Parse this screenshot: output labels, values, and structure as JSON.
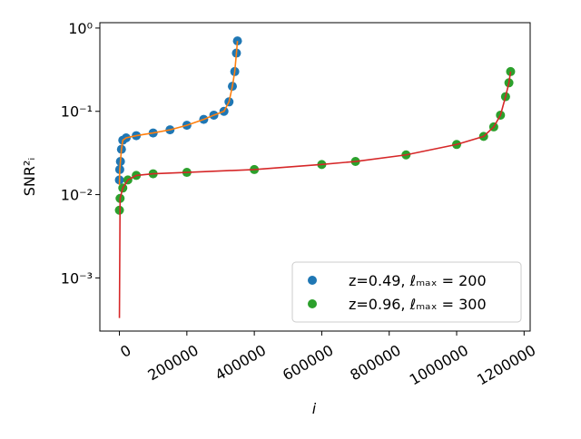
{
  "chart_data": {
    "type": "scatter",
    "xlabel": "i",
    "ylabel": "SNR²ᵢ",
    "xlim": [
      -58000,
      1218000
    ],
    "ylim": [
      0.00023,
      1.16
    ],
    "yscale": "log",
    "xticks": [
      0,
      200000,
      400000,
      600000,
      800000,
      1000000,
      1200000
    ],
    "yticks": [
      {
        "value": 0.001,
        "label": "10⁻³"
      },
      {
        "value": 0.01,
        "label": "10⁻²"
      },
      {
        "value": 0.1,
        "label": "10⁻¹"
      },
      {
        "value": 1,
        "label": "10⁰"
      }
    ],
    "legend": "lower right",
    "series": [
      {
        "name": "z=0.49, ℓₘₐₓ = 200",
        "type": "scatter",
        "color": "#1f77b4",
        "x": [
          0,
          1000,
          3000,
          6000,
          10000,
          20000,
          50000,
          100000,
          150000,
          200000,
          250000,
          280000,
          310000,
          325000,
          335000,
          342000,
          347000,
          350000
        ],
        "values": [
          0.015,
          0.02,
          0.025,
          0.035,
          0.045,
          0.048,
          0.051,
          0.055,
          0.06,
          0.068,
          0.08,
          0.09,
          0.1,
          0.13,
          0.2,
          0.3,
          0.5,
          0.7
        ]
      },
      {
        "type": "line",
        "color": "#ff7f0e",
        "x": [
          0,
          1000,
          3000,
          6000,
          10000,
          20000,
          50000,
          100000,
          150000,
          200000,
          250000,
          280000,
          310000,
          325000,
          335000,
          342000,
          347000,
          350000
        ],
        "values": [
          0.013,
          0.02,
          0.025,
          0.035,
          0.045,
          0.048,
          0.051,
          0.055,
          0.06,
          0.068,
          0.08,
          0.09,
          0.1,
          0.13,
          0.2,
          0.3,
          0.5,
          0.7
        ]
      },
      {
        "name": "z=0.96, ℓₘₐₓ = 300",
        "type": "scatter",
        "color": "#2ca02c",
        "x": [
          0,
          2000,
          10000,
          25000,
          50000,
          100000,
          200000,
          400000,
          600000,
          700000,
          850000,
          1000000,
          1080000,
          1110000,
          1130000,
          1145000,
          1155000,
          1160000
        ],
        "values": [
          0.0065,
          0.009,
          0.012,
          0.015,
          0.017,
          0.0178,
          0.0185,
          0.02,
          0.023,
          0.025,
          0.03,
          0.04,
          0.05,
          0.065,
          0.09,
          0.15,
          0.22,
          0.3
        ]
      },
      {
        "type": "line",
        "color": "#d62728",
        "x": [
          0,
          2000,
          10000,
          25000,
          50000,
          100000,
          200000,
          400000,
          600000,
          700000,
          850000,
          1000000,
          1080000,
          1110000,
          1130000,
          1145000,
          1155000,
          1160000
        ],
        "values": [
          0.00033,
          0.009,
          0.012,
          0.015,
          0.017,
          0.0178,
          0.0185,
          0.02,
          0.023,
          0.025,
          0.03,
          0.04,
          0.05,
          0.065,
          0.09,
          0.15,
          0.22,
          0.3
        ]
      }
    ]
  }
}
